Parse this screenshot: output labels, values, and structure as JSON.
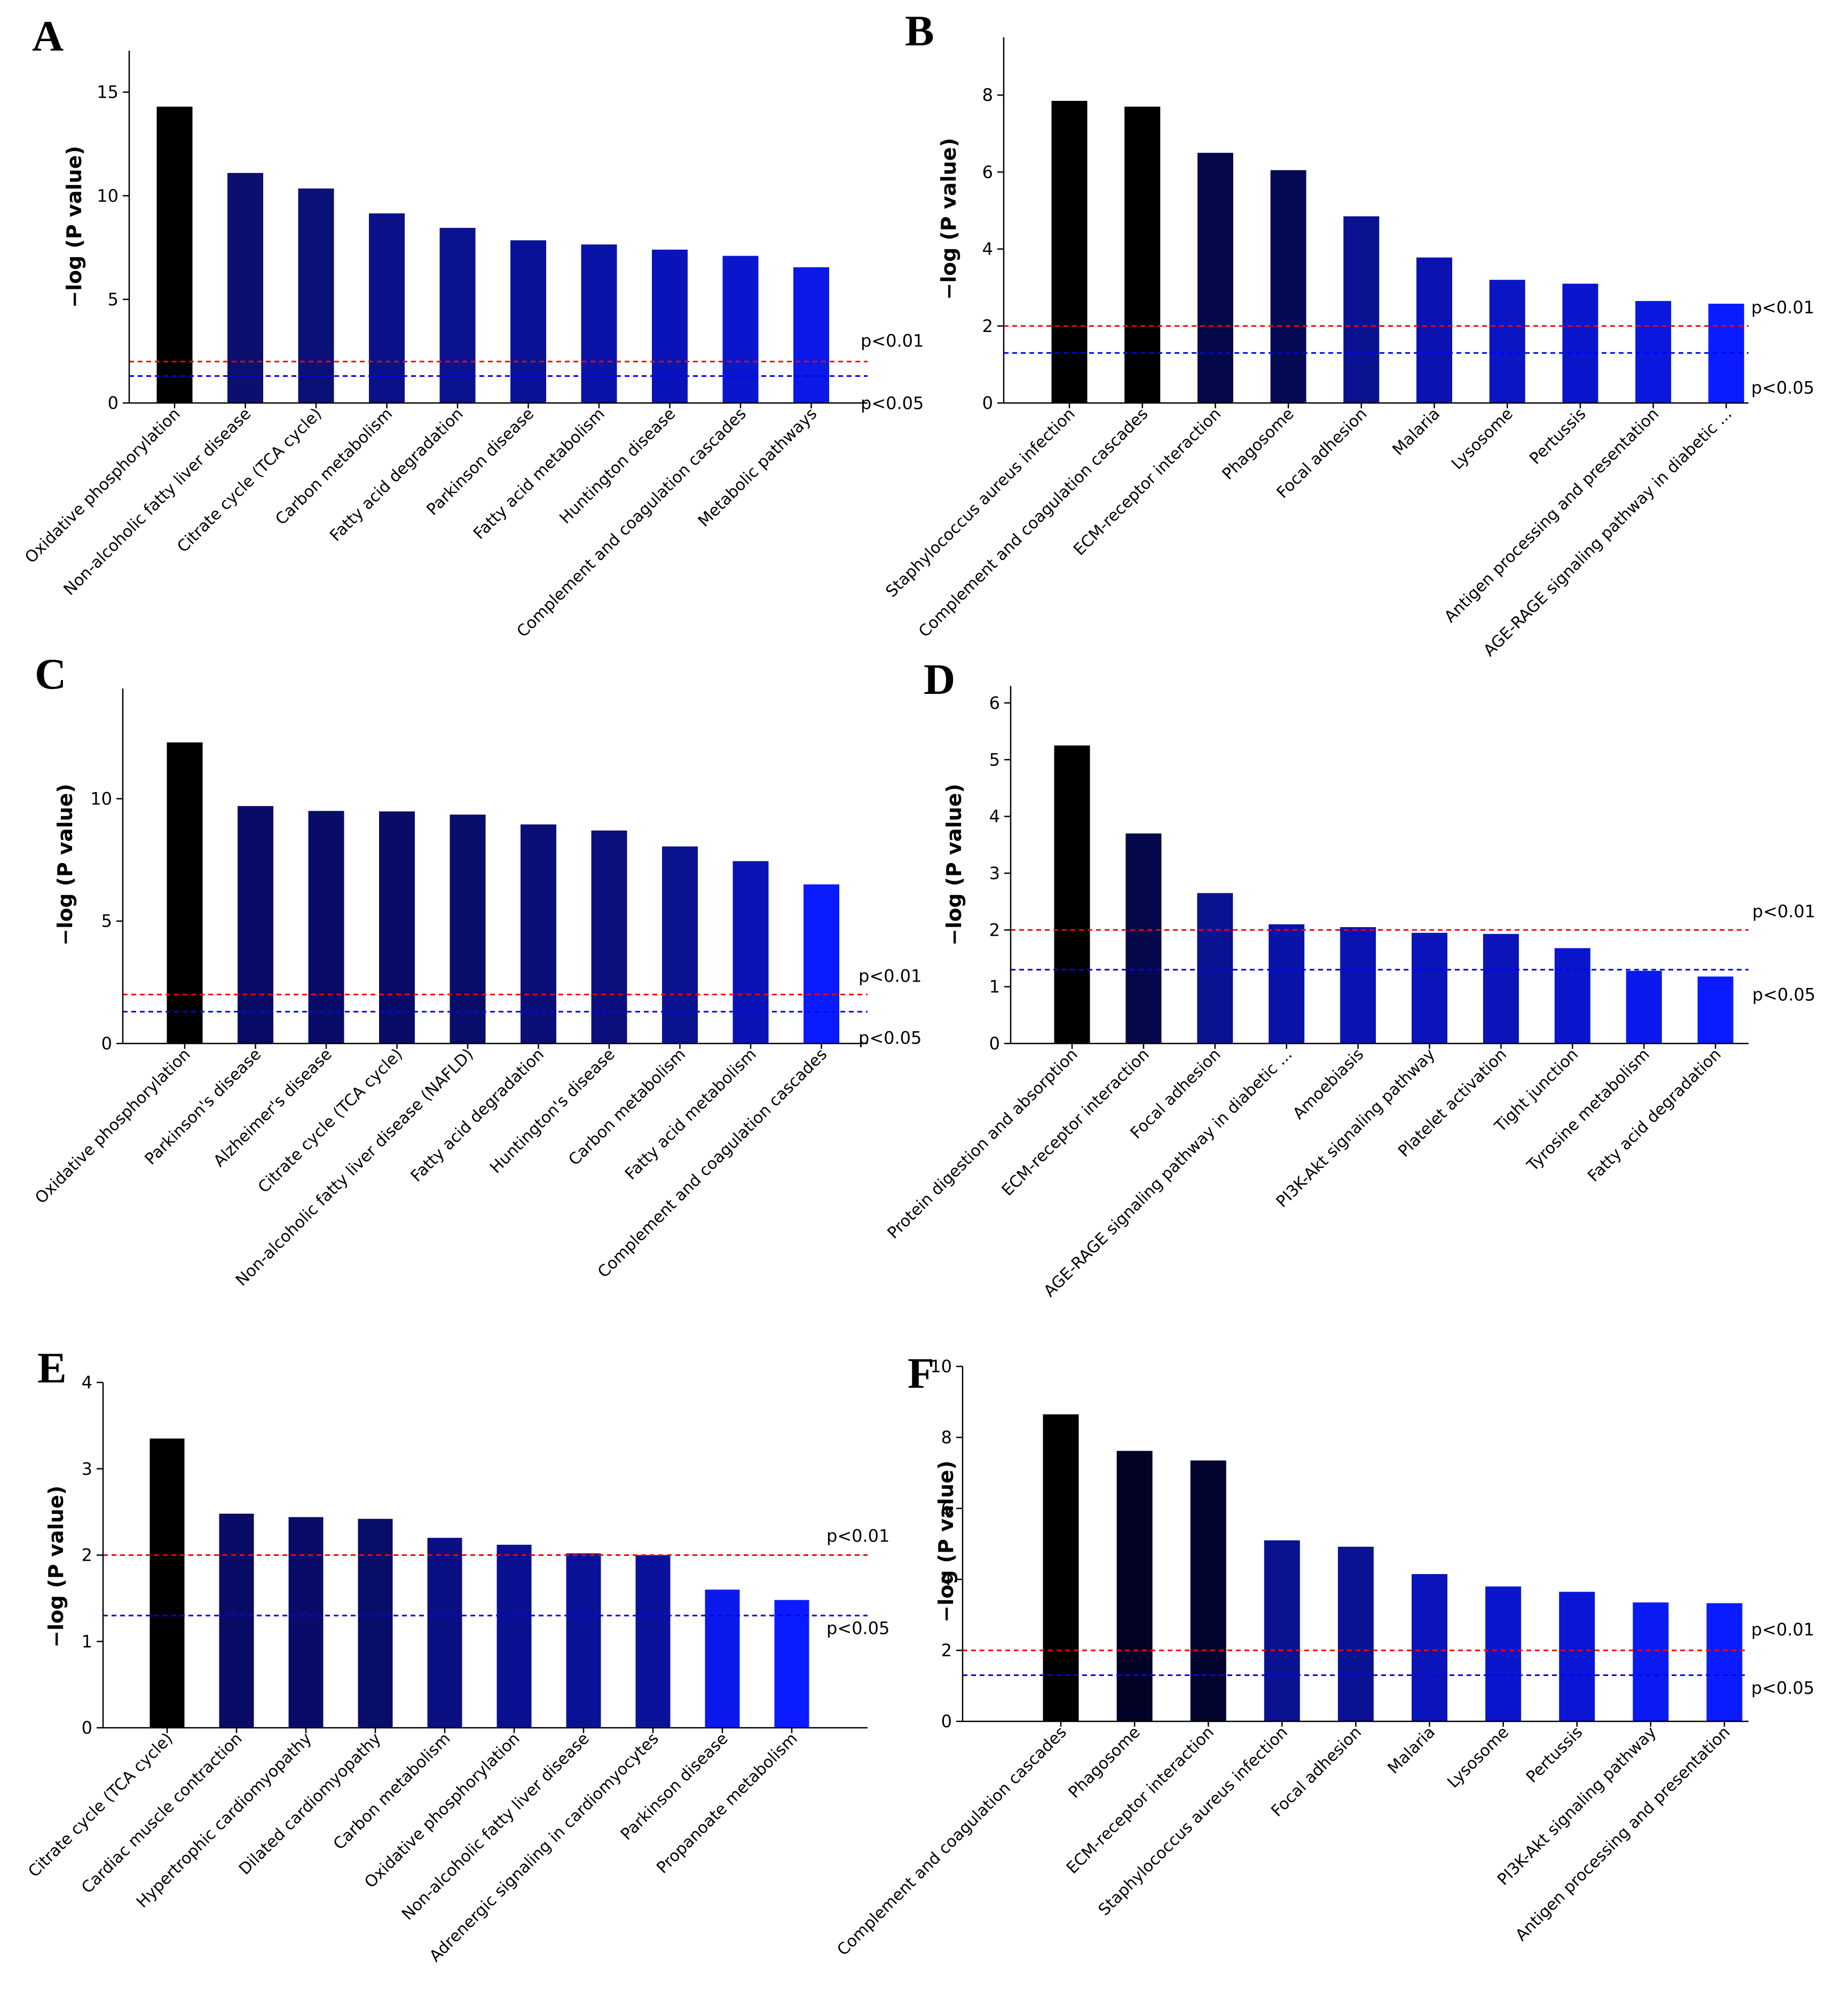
{
  "chart_data": [
    {
      "type": "bar",
      "panel": "A",
      "ylabel": "−log (P value)",
      "ylim": [
        0,
        17
      ],
      "yticks": [
        0,
        5,
        10,
        15
      ],
      "categories": [
        "Oxidative phosphorylation",
        "Non-alcoholic fatty liver disease",
        "Citrate cycle (TCA cycle)",
        "Carbon metabolism",
        "Fatty acid degradation",
        "Parkinson disease",
        "Fatty acid metabolism",
        "Huntington disease",
        "Complement and coagulation cascades",
        "Metabolic pathways"
      ],
      "values": [
        14.3,
        11.1,
        10.35,
        9.15,
        8.45,
        7.85,
        7.65,
        7.4,
        7.1,
        6.55
      ],
      "bar_colors": [
        "#000000",
        "#0b0f6e",
        "#0b1076",
        "#0a1088",
        "#0a1290",
        "#0a1298",
        "#0a13a8",
        "#0a13b8",
        "#0a16cc",
        "#0a18e8"
      ],
      "thresholds": [
        {
          "label": "p<0.01",
          "value": 2.0,
          "color": "#ff0000"
        },
        {
          "label": "p<0.05",
          "value": 1.3,
          "color": "#0000ff"
        }
      ]
    },
    {
      "type": "bar",
      "panel": "B",
      "ylabel": "−log (P value)",
      "ylim": [
        0,
        9.5
      ],
      "yticks": [
        0,
        2,
        4,
        6,
        8
      ],
      "categories": [
        "Staphylococcus aureus infection",
        "Complement and coagulation cascades",
        "ECM-receptor interaction",
        "Phagosome",
        "Focal adhesion",
        "Malaria",
        "Lysosome",
        "Pertussis",
        "Antigen processing and presentation",
        "AGE-RAGE signaling pathway in diabetic ..."
      ],
      "values": [
        7.85,
        7.7,
        6.5,
        6.05,
        4.85,
        3.78,
        3.2,
        3.1,
        2.65,
        2.58
      ],
      "bar_colors": [
        "#000000",
        "#000000",
        "#05084a",
        "#060a55",
        "#0a1290",
        "#0a13b0",
        "#0a16c4",
        "#0a16cc",
        "#0a18e0",
        "#0a1cff"
      ],
      "thresholds": [
        {
          "label": "p<0.01",
          "value": 2.0,
          "color": "#ff0000"
        },
        {
          "label": "p<0.05",
          "value": 1.3,
          "color": "#0000ff"
        }
      ]
    },
    {
      "type": "bar",
      "panel": "C",
      "ylabel": "−log (P value)",
      "ylim": [
        0,
        14.5
      ],
      "yticks": [
        0,
        5,
        10
      ],
      "categories": [
        "Oxidative phosphorylation",
        "Parkinson's disease",
        "Alzheimer's disease",
        "Citrate cycle (TCA cycle)",
        "Non-alcoholic fatty liver disease (NAFLD)",
        "Fatty acid degradation",
        "Huntington's disease",
        "Carbon metabolism",
        "Fatty acid metabolism",
        "Complement and coagulation cascades"
      ],
      "values": [
        12.3,
        9.7,
        9.5,
        9.48,
        9.35,
        8.95,
        8.7,
        8.05,
        7.45,
        6.5
      ],
      "bar_colors": [
        "#000000",
        "#080c66",
        "#080c68",
        "#080c68",
        "#080d6a",
        "#0a0f78",
        "#0a0f7c",
        "#0a1290",
        "#0a14b4",
        "#0a1cff"
      ],
      "thresholds": [
        {
          "label": "p<0.01",
          "value": 2.0,
          "color": "#ff0000"
        },
        {
          "label": "p<0.05",
          "value": 1.3,
          "color": "#0000ff"
        }
      ]
    },
    {
      "type": "bar",
      "panel": "D",
      "ylabel": "−log (P value)",
      "ylim": [
        0,
        6.3
      ],
      "yticks": [
        0,
        1,
        2,
        3,
        4,
        5,
        6
      ],
      "categories": [
        "Protein digestion and absorption",
        "ECM-receptor interaction",
        "Focal adhesion",
        "AGE-RAGE signaling pathway in diabetic ...",
        "Amoebiasis",
        "PI3K-Akt signaling pathway",
        "Platelet activation",
        "Tight junction",
        "Tyrosine metabolism",
        "Fatty acid degradation"
      ],
      "values": [
        5.25,
        3.7,
        2.65,
        2.1,
        2.05,
        1.95,
        1.93,
        1.68,
        1.28,
        1.18
      ],
      "bar_colors": [
        "#000000",
        "#05084a",
        "#0a1290",
        "#0a13a8",
        "#0a13b0",
        "#0a14b8",
        "#0a14b8",
        "#0a16cc",
        "#0a1aec",
        "#0a1cff"
      ],
      "thresholds": [
        {
          "label": "p<0.01",
          "value": 2.0,
          "color": "#ff0000"
        },
        {
          "label": "p<0.05",
          "value": 1.3,
          "color": "#0000ff"
        }
      ]
    },
    {
      "type": "bar",
      "panel": "E",
      "ylabel": "−log (P value)",
      "ylim": [
        0,
        4
      ],
      "yticks": [
        0,
        1,
        2,
        3,
        4
      ],
      "categories": [
        "Citrate cycle (TCA cycle)",
        "Cardiac muscle contraction",
        "Hypertrophic cardiomyopathy",
        "Dilated cardiomyopathy",
        "Carbon metabolism",
        "Oxidative phosphorylation",
        "Non-alcoholic fatty liver disease",
        "Adrenergic signaling in cardiomyocytes",
        "Parkinson disease",
        "Propanoate metabolism"
      ],
      "values": [
        3.35,
        2.48,
        2.44,
        2.42,
        2.2,
        2.12,
        2.02,
        2.0,
        1.6,
        1.48
      ],
      "bar_colors": [
        "#000000",
        "#080c66",
        "#080c68",
        "#080d6a",
        "#0a0f84",
        "#0a1090",
        "#0a1298",
        "#0a129c",
        "#0a1aec",
        "#0a1cff"
      ],
      "thresholds": [
        {
          "label": "p<0.01",
          "value": 2.0,
          "color": "#ff0000"
        },
        {
          "label": "p<0.05",
          "value": 1.3,
          "color": "#0000ff"
        }
      ]
    },
    {
      "type": "bar",
      "panel": "F",
      "ylabel": "−log (P value)",
      "ylim": [
        0,
        10
      ],
      "yticks": [
        0,
        2,
        4,
        6,
        8,
        10
      ],
      "categories": [
        "Complement and coagulation cascades",
        "Phagosome",
        "ECM-receptor interaction",
        "Staphylococcus aureus infection",
        "Focal adhesion",
        "Malaria",
        "Lysosome",
        "Pertussis",
        "PI3K-Akt signaling pathway",
        "Antigen processing and presentation"
      ],
      "values": [
        8.65,
        7.62,
        7.35,
        5.1,
        4.92,
        4.15,
        3.8,
        3.65,
        3.35,
        3.33
      ],
      "bar_colors": [
        "#000000",
        "#020326",
        "#03052e",
        "#0a1290",
        "#0a1294",
        "#0a14b8",
        "#0a16cc",
        "#0a16d4",
        "#0a1af0",
        "#0a1cff"
      ],
      "thresholds": [
        {
          "label": "p<0.01",
          "value": 2.0,
          "color": "#ff0000"
        },
        {
          "label": "p<0.05",
          "value": 1.3,
          "color": "#0000ff"
        }
      ]
    }
  ]
}
